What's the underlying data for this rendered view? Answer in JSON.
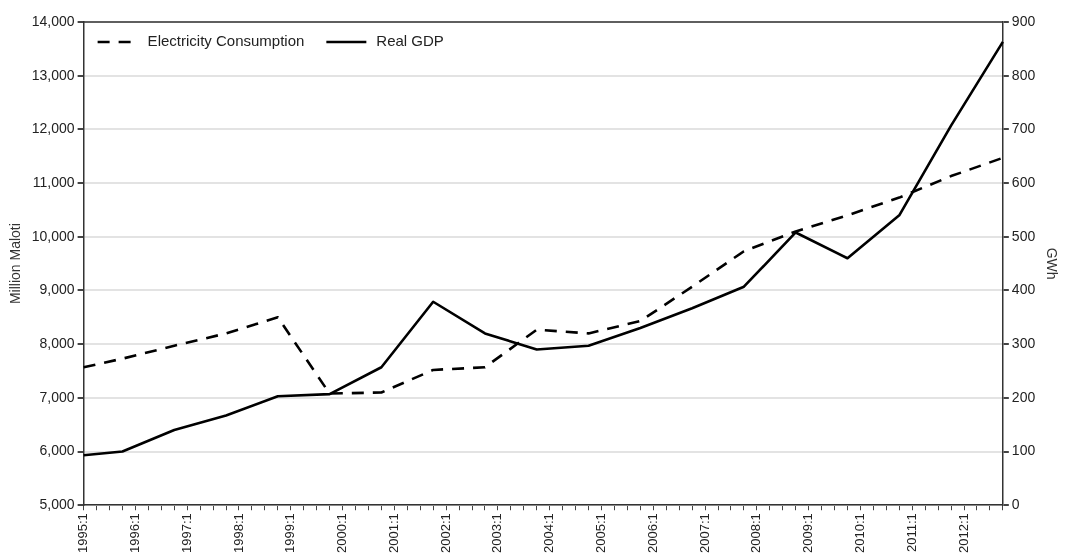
{
  "chart_data": {
    "type": "line",
    "categories": [
      "1995:1",
      null,
      null,
      null,
      "1996:1",
      null,
      null,
      null,
      "1997:1",
      null,
      null,
      null,
      "1998:1",
      null,
      null,
      null,
      "1999:1",
      null,
      null,
      null,
      "2000:1",
      null,
      null,
      null,
      "2001:1",
      null,
      null,
      null,
      "2002:1",
      null,
      null,
      null,
      "2003:1",
      null,
      null,
      null,
      "2004:1",
      null,
      null,
      null,
      "2005:1",
      null,
      null,
      null,
      "2006:1",
      null,
      null,
      null,
      "2007:1",
      null,
      null,
      null,
      "2008:1",
      null,
      null,
      null,
      "2009:1",
      null,
      null,
      null,
      "2010:1",
      null,
      null,
      null,
      "2011:1",
      null,
      null,
      null,
      "2012:1",
      null,
      null,
      null
    ],
    "series": [
      {
        "name": "Electricity Consumption",
        "color": "#000000",
        "axis": "y2",
        "line_style": "dashed",
        "values": [
          257,
          null,
          null,
          273,
          null,
          null,
          null,
          297,
          null,
          null,
          null,
          320,
          null,
          null,
          null,
          350,
          null,
          null,
          null,
          208,
          null,
          null,
          null,
          210,
          null,
          null,
          null,
          252,
          null,
          null,
          null,
          257,
          null,
          null,
          null,
          327,
          null,
          null,
          null,
          320,
          null,
          null,
          null,
          343,
          null,
          null,
          null,
          407,
          null,
          null,
          null,
          473,
          null,
          null,
          null,
          510,
          null,
          null,
          null,
          540,
          null,
          null,
          null,
          573,
          null,
          null,
          null,
          613,
          null,
          null,
          null,
          647
        ]
      },
      {
        "name": "Real GDP",
        "color": "#000000",
        "line_style": "solid",
        "values": [
          5930,
          null,
          null,
          6000,
          null,
          null,
          null,
          6400,
          null,
          null,
          null,
          6670,
          null,
          null,
          null,
          7030,
          null,
          null,
          null,
          7070,
          null,
          null,
          null,
          7570,
          null,
          null,
          null,
          8790,
          null,
          null,
          null,
          8200,
          null,
          null,
          null,
          7900,
          null,
          null,
          null,
          7970,
          null,
          null,
          null,
          8300,
          null,
          null,
          null,
          8670,
          null,
          null,
          null,
          9070,
          null,
          null,
          null,
          10080,
          null,
          null,
          null,
          9600,
          null,
          null,
          null,
          10400,
          null,
          null,
          null,
          12070,
          null,
          null,
          null,
          13630
        ]
      }
    ],
    "ylabel": "Million Maloti",
    "y2label": "GWh",
    "ylim": [
      5000,
      14000
    ],
    "yticks": [
      {
        "value": 5000,
        "label": "5,000"
      },
      {
        "value": 6000,
        "label": "6,000"
      },
      {
        "value": 7000,
        "label": "7,000"
      },
      {
        "value": 8000,
        "label": "8,000"
      },
      {
        "value": 9000,
        "label": "9,000"
      },
      {
        "value": 10000,
        "label": "10,000"
      },
      {
        "value": 11000,
        "label": "11,000"
      },
      {
        "value": 12000,
        "label": "12,000"
      },
      {
        "value": 13000,
        "label": "13,000"
      },
      {
        "value": 14000,
        "label": "14,000"
      }
    ],
    "y2lim": [
      0,
      900
    ],
    "y2ticks": [
      0,
      100,
      200,
      300,
      400,
      500,
      600,
      700,
      800,
      900
    ],
    "grid": "y",
    "legend": "top left",
    "marker": "none"
  }
}
